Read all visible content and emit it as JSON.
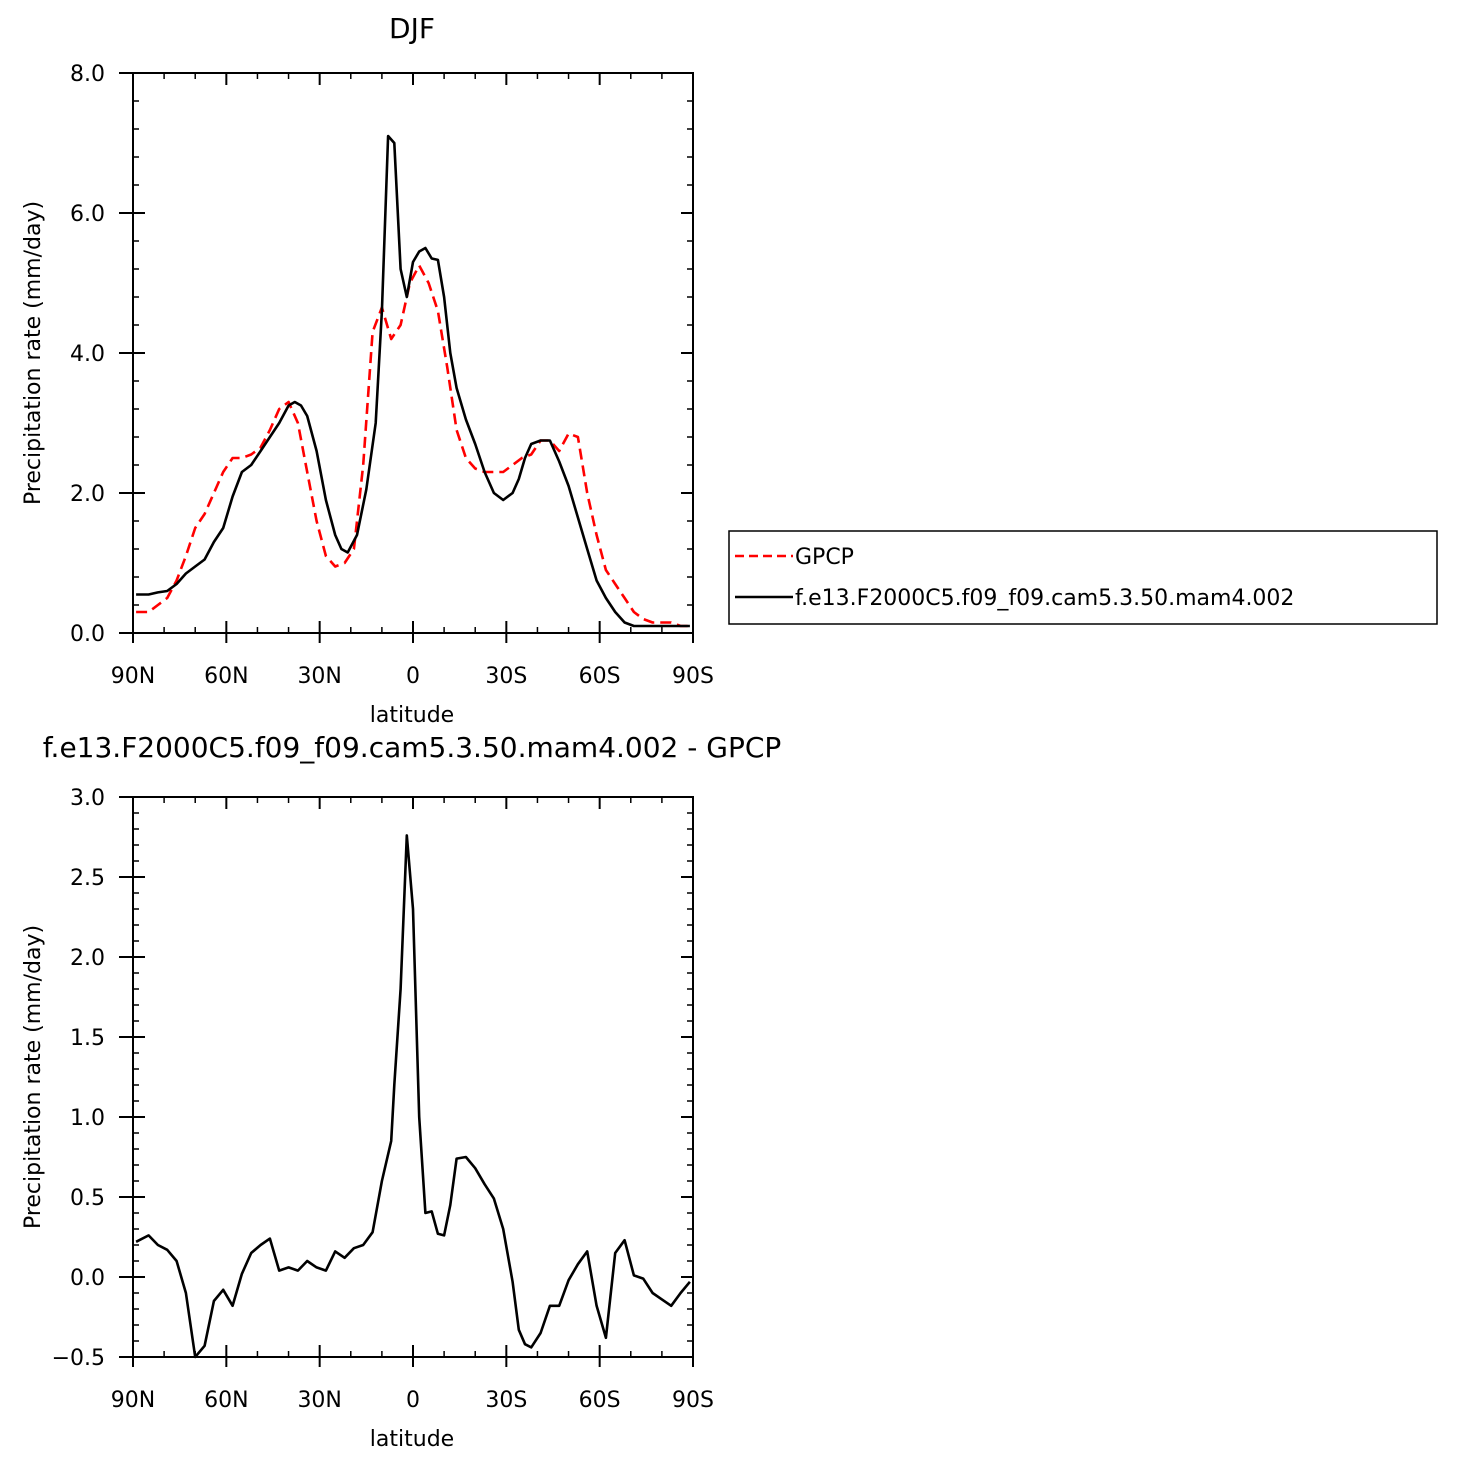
{
  "chart_data": [
    {
      "type": "line",
      "title": "DJF",
      "xlabel": "latitude",
      "ylabel": "Precipitation rate (mm/day)",
      "xlim": [
        90,
        -90
      ],
      "ylim": [
        0,
        8
      ],
      "x_ticks": [
        90,
        60,
        30,
        0,
        -30,
        -60,
        -90
      ],
      "x_tick_labels": [
        "90N",
        "60N",
        "30N",
        "0",
        "30S",
        "60S",
        "90S"
      ],
      "y_ticks": [
        0,
        2,
        4,
        6,
        8
      ],
      "y_tick_labels": [
        "0.0",
        "2.0",
        "4.0",
        "6.0",
        "8.0"
      ],
      "legend": {
        "placement": "right",
        "entries": [
          "GPCP",
          "f.e13.F2000C5.f09_f09.cam5.3.50.mam4.002"
        ]
      },
      "series": [
        {
          "name": "GPCP",
          "color": "#ff0000",
          "dashed": true,
          "x": [
            89,
            85,
            82,
            79,
            76,
            73,
            70,
            67,
            64,
            61,
            58,
            55,
            52,
            49,
            46,
            43,
            40,
            37,
            34,
            31,
            28,
            25,
            22,
            19,
            16,
            13,
            10,
            7,
            4,
            1,
            -2,
            -5,
            -8,
            -11,
            -14,
            -17,
            -20,
            -23,
            -26,
            -29,
            -32,
            -35,
            -38,
            -41,
            -44,
            -47,
            -50,
            -53,
            -56,
            -59,
            -62,
            -65,
            -68,
            -71,
            -74,
            -77,
            -80,
            -83,
            -86,
            -89
          ],
          "y": [
            0.3,
            0.3,
            0.4,
            0.5,
            0.75,
            1.1,
            1.5,
            1.7,
            2.0,
            2.3,
            2.5,
            2.5,
            2.55,
            2.65,
            2.9,
            3.2,
            3.3,
            3.0,
            2.3,
            1.6,
            1.1,
            0.95,
            1.0,
            1.2,
            2.4,
            4.3,
            4.65,
            4.2,
            4.4,
            5.0,
            5.25,
            5.0,
            4.6,
            3.8,
            2.9,
            2.5,
            2.35,
            2.3,
            2.3,
            2.3,
            2.4,
            2.5,
            2.55,
            2.75,
            2.75,
            2.6,
            2.85,
            2.8,
            2.0,
            1.4,
            0.9,
            0.7,
            0.5,
            0.3,
            0.2,
            0.15,
            0.15,
            0.15,
            0.1,
            0.1
          ]
        },
        {
          "name": "f.e13.F2000C5.f09_f09.cam5.3.50.mam4.002",
          "color": "#000000",
          "dashed": false,
          "x": [
            89,
            85,
            82,
            79,
            76,
            73,
            70,
            67,
            64,
            61,
            58,
            55,
            52,
            49,
            46,
            43,
            40,
            38,
            36,
            34,
            31,
            28,
            25,
            23,
            21,
            18,
            15,
            12,
            10,
            8,
            6,
            4,
            2,
            0,
            -2,
            -4,
            -6,
            -8,
            -10,
            -12,
            -14,
            -17,
            -20,
            -23,
            -26,
            -29,
            -32,
            -34,
            -36,
            -38,
            -41,
            -44,
            -47,
            -50,
            -53,
            -56,
            -59,
            -62,
            -65,
            -68,
            -71,
            -74,
            -77,
            -80,
            -83,
            -86,
            -89
          ],
          "y": [
            0.55,
            0.55,
            0.58,
            0.6,
            0.7,
            0.85,
            0.95,
            1.05,
            1.3,
            1.5,
            1.95,
            2.3,
            2.4,
            2.6,
            2.8,
            3.0,
            3.25,
            3.3,
            3.25,
            3.1,
            2.6,
            1.9,
            1.4,
            1.2,
            1.15,
            1.4,
            2.05,
            3.0,
            4.6,
            7.1,
            7.0,
            5.2,
            4.8,
            5.3,
            5.45,
            5.5,
            5.35,
            5.33,
            4.8,
            4.0,
            3.5,
            3.05,
            2.7,
            2.3,
            2.0,
            1.9,
            2.0,
            2.2,
            2.5,
            2.7,
            2.75,
            2.75,
            2.45,
            2.1,
            1.65,
            1.2,
            0.75,
            0.5,
            0.3,
            0.15,
            0.1,
            0.1,
            0.1,
            0.1,
            0.1,
            0.1,
            0.1
          ]
        }
      ]
    },
    {
      "type": "line",
      "title": "f.e13.F2000C5.f09_f09.cam5.3.50.mam4.002 - GPCP",
      "xlabel": "latitude",
      "ylabel": "Precipitation rate (mm/day)",
      "xlim": [
        90,
        -90
      ],
      "ylim": [
        -0.5,
        3.0
      ],
      "x_ticks": [
        90,
        60,
        30,
        0,
        -30,
        -60,
        -90
      ],
      "x_tick_labels": [
        "90N",
        "60N",
        "30N",
        "0",
        "30S",
        "60S",
        "90S"
      ],
      "y_ticks": [
        -0.5,
        0,
        0.5,
        1.0,
        1.5,
        2.0,
        2.5,
        3.0
      ],
      "y_tick_labels": [
        "−0.5",
        "0.0",
        "0.5",
        "1.0",
        "1.5",
        "2.0",
        "2.5",
        "3.0"
      ],
      "series": [
        {
          "color": "#000000",
          "dashed": false,
          "x": [
            89,
            85,
            82,
            79,
            76,
            73,
            70,
            67,
            64,
            61,
            58,
            55,
            52,
            49,
            46,
            43,
            40,
            37,
            34,
            31,
            28,
            25,
            22,
            19,
            16,
            13,
            10,
            7,
            6,
            4,
            2,
            0,
            -2,
            -4,
            -6,
            -8,
            -10,
            -12,
            -14,
            -17,
            -20,
            -23,
            -26,
            -29,
            -32,
            -34,
            -36,
            -38,
            -41,
            -44,
            -47,
            -50,
            -53,
            -56,
            -59,
            -62,
            -65,
            -68,
            -71,
            -74,
            -77,
            -80,
            -83,
            -86,
            -89
          ],
          "y": [
            0.22,
            0.26,
            0.2,
            0.17,
            0.1,
            -0.1,
            -0.5,
            -0.43,
            -0.15,
            -0.08,
            -0.18,
            0.02,
            0.15,
            0.2,
            0.24,
            0.04,
            0.06,
            0.04,
            0.1,
            0.06,
            0.04,
            0.16,
            0.12,
            0.18,
            0.2,
            0.28,
            0.6,
            0.85,
            1.2,
            1.8,
            2.76,
            2.3,
            1.0,
            0.4,
            0.41,
            0.27,
            0.26,
            0.45,
            0.74,
            0.75,
            0.68,
            0.58,
            0.49,
            0.3,
            -0.03,
            -0.33,
            -0.42,
            -0.44,
            -0.35,
            -0.18,
            -0.18,
            -0.02,
            0.08,
            0.16,
            -0.18,
            -0.38,
            0.15,
            0.23,
            0.01,
            -0.01,
            -0.1,
            -0.14,
            -0.18,
            -0.1,
            -0.03
          ]
        }
      ]
    }
  ]
}
